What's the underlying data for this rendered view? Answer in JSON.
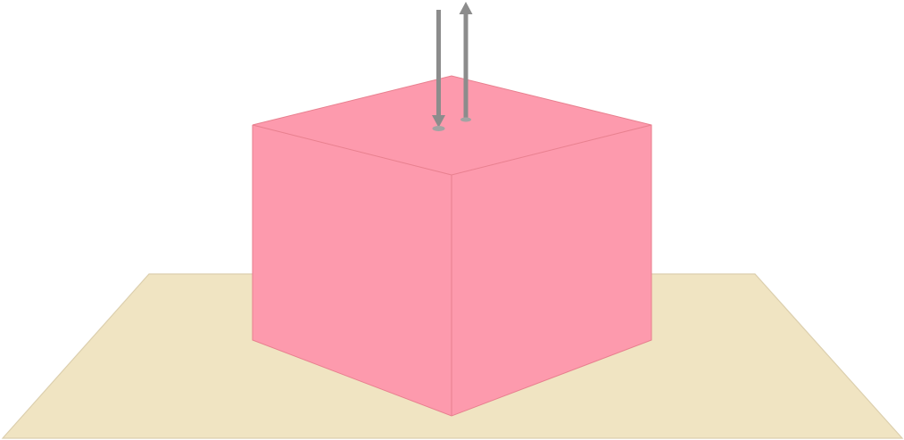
{
  "scene": {
    "description_none": "",
    "colors": {
      "background": "#ffffff",
      "ground_fill": "#f0e4c2",
      "ground_stroke": "#dccfae",
      "cube_fill": "#fd9aad",
      "cube_top_fill": "#fd9aad",
      "cube_edge": "#e8808f",
      "arrow": "#8c8c8c",
      "arrow_foot": "#a3a3a3"
    },
    "icons": {
      "ground": "ground-plane",
      "cube": "cube-shape",
      "arrow_down": "arrow-down-icon",
      "arrow_up": "arrow-up-icon"
    },
    "arrow_count": 2
  }
}
